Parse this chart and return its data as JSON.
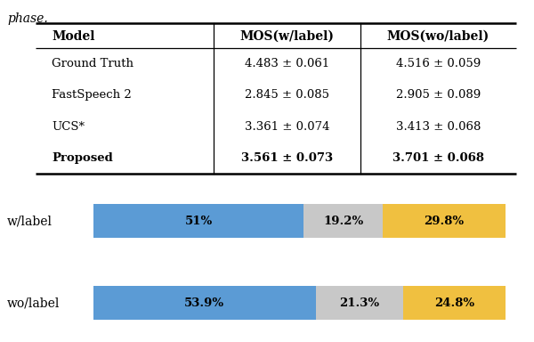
{
  "italic_text": "phase.",
  "table_headers": [
    "Model",
    "MOS(w/label)",
    "MOS(wo/label)"
  ],
  "table_rows": [
    [
      "Ground Truth",
      "4.483 ± 0.061",
      "4.516 ± 0.059"
    ],
    [
      "FastSpeech 2",
      "2.845 ± 0.085",
      "2.905 ± 0.089"
    ],
    [
      "UCS*",
      "3.361 ± 0.074",
      "3.413 ± 0.068"
    ],
    [
      "Proposed",
      "3.561 ± 0.073",
      "3.701 ± 0.068"
    ]
  ],
  "bar_labels": [
    "w/label",
    "wo/label"
  ],
  "bar_data": [
    [
      51.0,
      19.2,
      29.8
    ],
    [
      53.9,
      21.3,
      24.8
    ]
  ],
  "bar_colors": [
    "#5b9bd5",
    "#c8c8c8",
    "#f0c040"
  ],
  "bar_percentages": [
    [
      "51%",
      "19.2%",
      "29.8%"
    ],
    [
      "53.9%",
      "21.3%",
      "24.8%"
    ]
  ],
  "background_color": "#ffffff",
  "figsize": [
    6.0,
    3.84
  ],
  "dpi": 100
}
